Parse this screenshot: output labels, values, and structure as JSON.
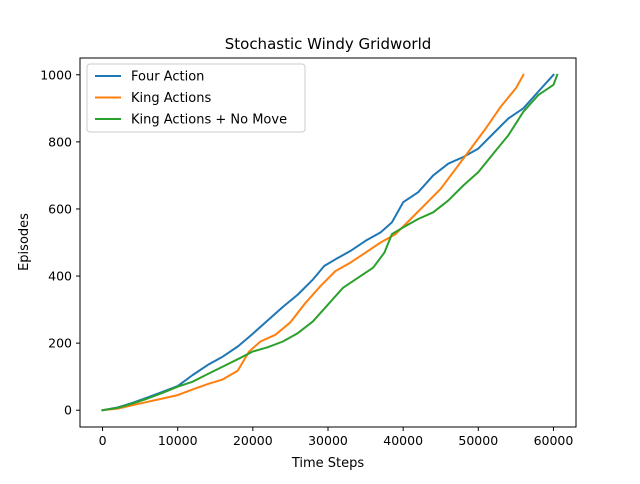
{
  "chart_data": {
    "type": "line",
    "title": "Stochastic Windy Gridworld",
    "xlabel": "Time Steps",
    "ylabel": "Episodes",
    "xlim": [
      -3000,
      63000
    ],
    "ylim": [
      -50,
      1050
    ],
    "xticks": [
      0,
      10000,
      20000,
      30000,
      40000,
      50000,
      60000
    ],
    "yticks": [
      0,
      200,
      400,
      600,
      800,
      1000
    ],
    "grid": false,
    "legend_position": "top-left",
    "series": [
      {
        "name": "Four Action",
        "color": "#1f77b4",
        "points": [
          [
            0,
            0
          ],
          [
            2000,
            8
          ],
          [
            4000,
            22
          ],
          [
            6000,
            38
          ],
          [
            8000,
            55
          ],
          [
            10000,
            72
          ],
          [
            12000,
            105
          ],
          [
            14000,
            135
          ],
          [
            16000,
            160
          ],
          [
            18000,
            190
          ],
          [
            20000,
            228
          ],
          [
            22000,
            268
          ],
          [
            24000,
            308
          ],
          [
            26000,
            345
          ],
          [
            28000,
            390
          ],
          [
            29500,
            430
          ],
          [
            31000,
            450
          ],
          [
            33000,
            475
          ],
          [
            35000,
            505
          ],
          [
            37000,
            530
          ],
          [
            38500,
            560
          ],
          [
            40000,
            620
          ],
          [
            42000,
            650
          ],
          [
            44000,
            700
          ],
          [
            46000,
            735
          ],
          [
            48000,
            755
          ],
          [
            50000,
            780
          ],
          [
            52000,
            825
          ],
          [
            54000,
            870
          ],
          [
            56000,
            900
          ],
          [
            58000,
            950
          ],
          [
            60000,
            1000
          ]
        ]
      },
      {
        "name": "King Actions",
        "color": "#ff7f0e",
        "points": [
          [
            0,
            0
          ],
          [
            2000,
            5
          ],
          [
            4000,
            15
          ],
          [
            6000,
            25
          ],
          [
            8000,
            35
          ],
          [
            10000,
            45
          ],
          [
            12000,
            62
          ],
          [
            14000,
            78
          ],
          [
            16000,
            92
          ],
          [
            18000,
            118
          ],
          [
            19500,
            175
          ],
          [
            21000,
            205
          ],
          [
            23000,
            225
          ],
          [
            25000,
            262
          ],
          [
            27000,
            320
          ],
          [
            29000,
            370
          ],
          [
            31000,
            415
          ],
          [
            33000,
            440
          ],
          [
            35000,
            470
          ],
          [
            37000,
            500
          ],
          [
            39000,
            525
          ],
          [
            41000,
            570
          ],
          [
            43000,
            615
          ],
          [
            45000,
            660
          ],
          [
            47000,
            720
          ],
          [
            49000,
            780
          ],
          [
            51000,
            840
          ],
          [
            53000,
            905
          ],
          [
            55000,
            960
          ],
          [
            56000,
            1000
          ]
        ]
      },
      {
        "name": "King Actions + No Move",
        "color": "#2ca02c",
        "points": [
          [
            0,
            0
          ],
          [
            2000,
            7
          ],
          [
            4000,
            20
          ],
          [
            6000,
            35
          ],
          [
            8000,
            52
          ],
          [
            10000,
            70
          ],
          [
            12000,
            85
          ],
          [
            14000,
            108
          ],
          [
            16000,
            130
          ],
          [
            18000,
            152
          ],
          [
            20000,
            175
          ],
          [
            22000,
            188
          ],
          [
            24000,
            205
          ],
          [
            26000,
            230
          ],
          [
            28000,
            265
          ],
          [
            30000,
            315
          ],
          [
            32000,
            365
          ],
          [
            34000,
            395
          ],
          [
            36000,
            425
          ],
          [
            37500,
            470
          ],
          [
            38500,
            525
          ],
          [
            40000,
            545
          ],
          [
            42000,
            570
          ],
          [
            44000,
            590
          ],
          [
            46000,
            625
          ],
          [
            48000,
            670
          ],
          [
            50000,
            710
          ],
          [
            52000,
            765
          ],
          [
            54000,
            820
          ],
          [
            56000,
            890
          ],
          [
            58000,
            940
          ],
          [
            60000,
            970
          ],
          [
            60500,
            1000
          ]
        ]
      }
    ]
  }
}
